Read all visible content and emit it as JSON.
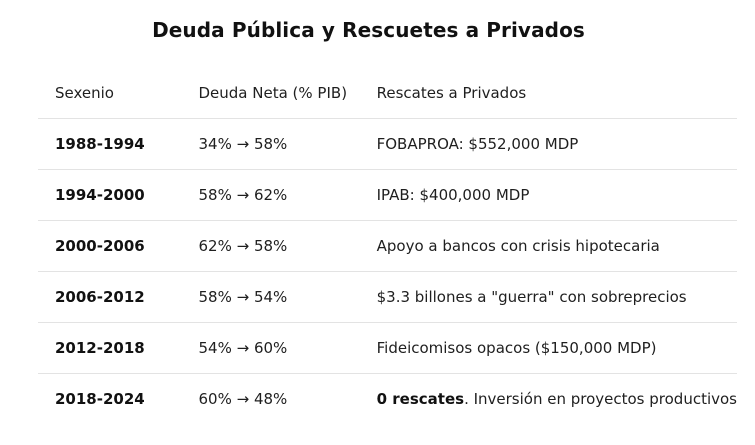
{
  "title": "Deuda Pública y Rescuetes a Privados",
  "headers": {
    "sexenio": "Sexenio",
    "deuda": "Deuda Neta (% PIB)",
    "rescates": "Rescates a Privados"
  },
  "rows": [
    {
      "sexenio": "1988-1994",
      "deuda": "34% → 58%",
      "rescate_bold": "",
      "rescate": "FOBAPROA: $552,000 MDP"
    },
    {
      "sexenio": "1994-2000",
      "deuda": "58% → 62%",
      "rescate_bold": "",
      "rescate": "IPAB: $400,000 MDP"
    },
    {
      "sexenio": "2000-2006",
      "deuda": "62% → 58%",
      "rescate_bold": "",
      "rescate": "Apoyo a bancos con crisis hipotecaria"
    },
    {
      "sexenio": "2006-2012",
      "deuda": "58% → 54%",
      "rescate_bold": "",
      "rescate": "$3.3 billones a \"guerra\" con sobreprecios"
    },
    {
      "sexenio": "2012-2018",
      "deuda": "54% → 60%",
      "rescate_bold": "",
      "rescate": "Fideicomisos opacos ($150,000 MDP)"
    },
    {
      "sexenio": "2018-2024",
      "deuda": "60% → 48%",
      "rescate_bold": "0 rescates",
      "rescate": ". Inversión en proyectos productivos"
    }
  ]
}
